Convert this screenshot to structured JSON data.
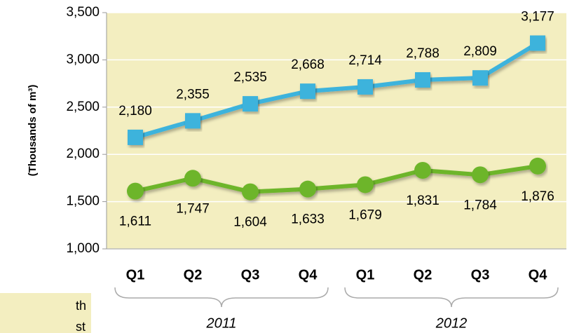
{
  "chart_data": {
    "type": "line",
    "y_label": "(Thousands of m³)",
    "categories": [
      "Q1",
      "Q2",
      "Q3",
      "Q4",
      "Q1",
      "Q2",
      "Q3",
      "Q4"
    ],
    "groups": [
      "2011",
      "2012"
    ],
    "series": [
      {
        "name": "Blue series",
        "color": "#3db3dc",
        "marker": "square",
        "values": [
          2180,
          2355,
          2535,
          2668,
          2714,
          2788,
          2809,
          3177
        ],
        "value_labels": [
          "2,180",
          "2,355",
          "2,535",
          "2,668",
          "2,714",
          "2,788",
          "2,809",
          "3,177"
        ]
      },
      {
        "name": "Green series",
        "color": "#6db52a",
        "marker": "circle",
        "values": [
          1611,
          1747,
          1604,
          1633,
          1679,
          1831,
          1784,
          1876
        ],
        "value_labels": [
          "1,611",
          "1,747",
          "1,604",
          "1,633",
          "1,679",
          "1,831",
          "1,784",
          "1,876"
        ]
      }
    ],
    "ylim": [
      1000,
      3500
    ],
    "yticks": [
      {
        "value": 1000,
        "label": "1,000"
      },
      {
        "value": 1500,
        "label": "1,500"
      },
      {
        "value": 2000,
        "label": "2,000"
      },
      {
        "value": 2500,
        "label": "2,500"
      },
      {
        "value": 3000,
        "label": "3,000"
      },
      {
        "value": 3500,
        "label": "3,500"
      }
    ],
    "grid": true,
    "plot_background": "#f3eec0"
  },
  "annotation_lines": [
    "th",
    "st"
  ]
}
